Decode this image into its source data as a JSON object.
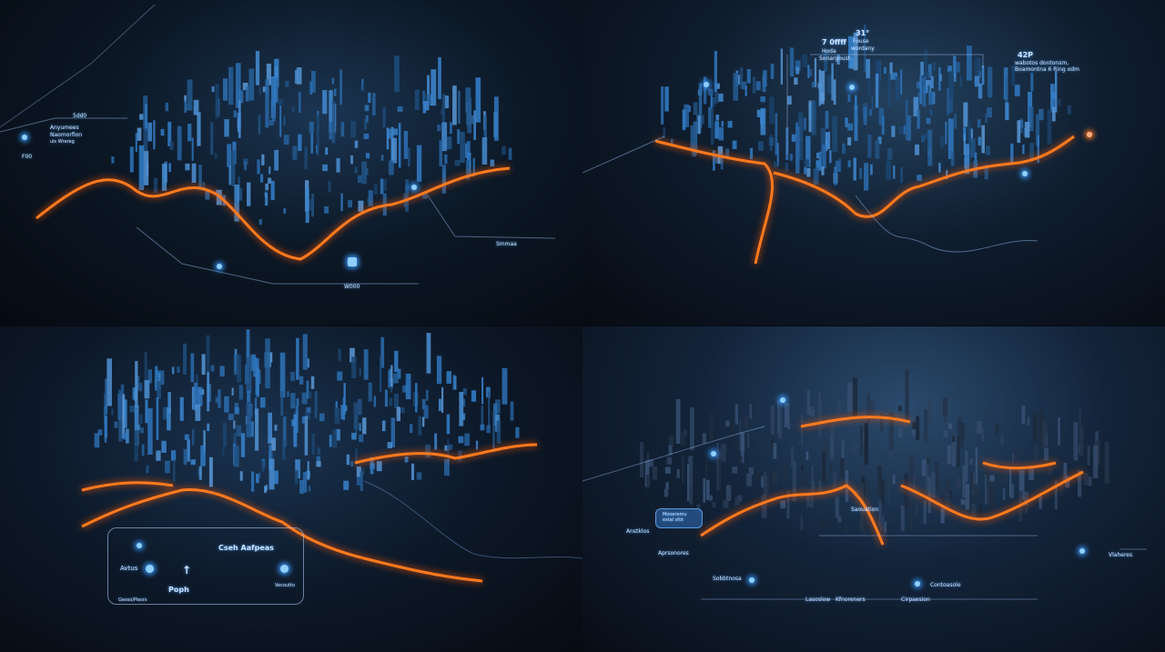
{
  "colors": {
    "glow_orange": "#ff7a1f",
    "glow_blue": "#3a9bff",
    "background": "#070b12"
  },
  "panels": [
    {
      "labels": {
        "top_value": "5dd0",
        "title": "Anyumees",
        "subtitle": "Naomorfion",
        "detail": "uls Wrareg",
        "left_value": "F00",
        "right_label": "Smmaa",
        "bottom_label": "W000"
      },
      "icons": [
        "location-pin-icon",
        "drop-icon",
        "shield-icon"
      ]
    },
    {
      "labels": {
        "callout_1_value": "7 0ffff",
        "callout_1_line1": "Hoda",
        "callout_1_line2": "Sonargoust",
        "callout_2_value": "31°",
        "callout_2_line1": "Fouse",
        "callout_2_line2": "wordany",
        "callout_3_value": "42P",
        "callout_3_line1": "wabotos dontonsm,",
        "callout_3_line2": "Boamontna 6 Ring odm"
      }
    },
    {
      "labels": {
        "heading": "Cseh Aafpeas",
        "item_1": "Avtus",
        "item_2": "Poph",
        "item_3": "Gesso/Piesrs",
        "item_4": "Vecoutto"
      },
      "icons": [
        "pin-icon",
        "up-arrow-icon",
        "shield-icon",
        "users-icon"
      ]
    },
    {
      "labels": {
        "pill": "Mooeremu estal sfot",
        "tag_1": "Anstklos",
        "tag_2": "Aprsonores",
        "tag_3": "Sobbtnosa",
        "tag_4": "Saouation",
        "tag_5": "Vlaheres",
        "tag_6": "Lasoslow",
        "tag_7": "Kfnoreners",
        "tag_8": "Cirpaesion",
        "tag_9": "Contoasole"
      }
    }
  ]
}
